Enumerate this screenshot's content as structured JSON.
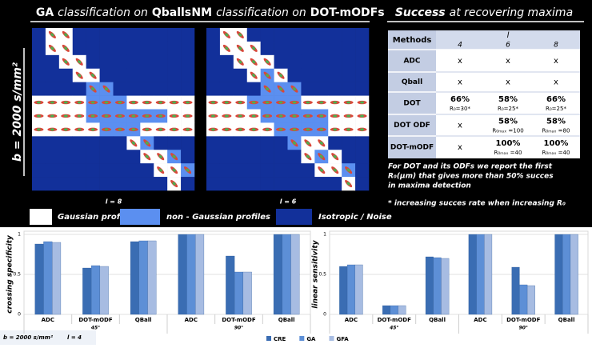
{
  "panels": [
    {
      "title": [
        "GA",
        "classification on",
        "Qballs"
      ],
      "caption": "l = 8"
    },
    {
      "title": [
        "NM",
        "classification on",
        "DOT-mODFs"
      ],
      "caption": "l = 6"
    }
  ],
  "side_label": "b = 2000 s/mm²",
  "table_title": [
    "Success",
    "at recovering maxima"
  ],
  "table": {
    "header": [
      "Methods",
      "l"
    ],
    "orders": [
      "4",
      "6",
      "8"
    ],
    "rows": [
      {
        "method": "ADC",
        "cells": [
          [
            "x"
          ],
          [
            "x"
          ],
          [
            "x"
          ]
        ]
      },
      {
        "method": "Qball",
        "cells": [
          [
            "x"
          ],
          [
            "x"
          ],
          [
            "x"
          ]
        ]
      },
      {
        "method": "DOT",
        "cells": [
          [
            "66%",
            "R₀=30*"
          ],
          [
            "58%",
            "R₀=25*"
          ],
          [
            "66%",
            "R₀=25*"
          ]
        ]
      },
      {
        "method": "DOT ODF",
        "cells": [
          [
            "x"
          ],
          [
            "58%",
            "R₀ₘₐₓ =100"
          ],
          [
            "58%",
            "R₀ₘₐₓ =80"
          ]
        ]
      },
      {
        "method": "DOT-mODF",
        "cells": [
          [
            "x"
          ],
          [
            "100%",
            "R₀ₘₐₓ =40"
          ],
          [
            "100%",
            "R₀ₘₐₓ =40"
          ]
        ]
      }
    ]
  },
  "notes": [
    "For DOT and its ODFs we report the first",
    "R₀(μm) that gives more than 50% succes",
    "in maxima detection",
    "* increasing succes rate when increasing R₀"
  ],
  "legend": [
    "Gaussian profiles",
    "non - Gaussian profiles",
    "Isotropic / Noise"
  ],
  "footnote": [
    "b = 2000 s/mm²",
    "l = 4"
  ],
  "chart_data": [
    {
      "type": "bar",
      "y_label": "crossing specificity",
      "categories": [
        "ADC",
        "DOT-mODF",
        "QBall",
        "ADC",
        "DOT-mODF",
        "QBall"
      ],
      "groups": [
        "45°",
        "90°"
      ],
      "series": [
        {
          "name": "CRE",
          "color": "#3a6db3",
          "values": [
            0.88,
            0.58,
            0.91,
            1,
            0.73,
            1
          ]
        },
        {
          "name": "GA",
          "color": "#5d8fd6",
          "values": [
            0.91,
            0.61,
            0.92,
            1,
            0.53,
            1
          ]
        },
        {
          "name": "GFA",
          "color": "#a7bce2",
          "values": [
            0.9,
            0.6,
            0.92,
            1,
            0.53,
            1
          ]
        }
      ],
      "ylim": [
        0,
        1
      ],
      "yticks": [
        0,
        0.5,
        1
      ],
      "grid": true
    },
    {
      "type": "bar",
      "y_label": "linear sensitivity",
      "categories": [
        "ADC",
        "DOT-mODF",
        "QBall",
        "ADC",
        "DOT-mODF",
        "QBall"
      ],
      "groups": [
        "45°",
        "90°"
      ],
      "series": [
        {
          "color": "#3a6db3",
          "values": [
            0.6,
            0.11,
            0.72,
            1,
            0.59,
            1
          ]
        },
        {
          "color": "#5d8fd6",
          "values": [
            0.62,
            0.11,
            0.71,
            1,
            0.37,
            1
          ]
        },
        {
          "color": "#a7bce2",
          "values": [
            0.62,
            0.11,
            0.7,
            1,
            0.36,
            1
          ]
        }
      ],
      "ylim": [
        0,
        1
      ],
      "yticks": [
        0,
        0.5,
        1
      ],
      "grid": true
    }
  ]
}
